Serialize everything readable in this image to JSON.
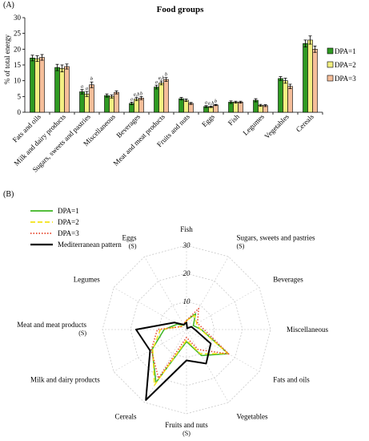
{
  "panel_a_label": "(A)",
  "panel_b_label": "(B)",
  "chart_data": [
    {
      "type": "bar",
      "title": "Food groups",
      "xlabel": "",
      "ylabel": "% of total energy",
      "ylim": [
        0,
        30
      ],
      "yticks": [
        0,
        5,
        10,
        15,
        20,
        25,
        30
      ],
      "grid": false,
      "legend_position": "right",
      "categories": [
        "Fats and oils",
        "Milk and dairy products",
        "Sugars, sweets and pastries",
        "Miscellaneous",
        "Beverages",
        "Meat and meat products",
        "Fruits and nuts",
        "Eggs",
        "Fish",
        "Legumes",
        "Vegetables",
        "Cereals"
      ],
      "series": [
        {
          "name": "DPA=1",
          "color": "#2f9a22",
          "values": [
            17.2,
            14.2,
            6.5,
            5.3,
            2.8,
            8.0,
            4.3,
            1.8,
            3.2,
            3.8,
            10.7,
            21.8
          ],
          "errors": [
            0.9,
            1.0,
            0.7,
            0.5,
            0.4,
            0.6,
            0.4,
            0.3,
            0.4,
            0.5,
            0.6,
            1.1
          ]
        },
        {
          "name": "DPA=2",
          "color": "#f2ef82",
          "values": [
            17.0,
            13.9,
            5.8,
            5.0,
            4.2,
            9.3,
            3.8,
            1.7,
            3.2,
            2.2,
            10.0,
            22.9
          ],
          "errors": [
            0.9,
            1.1,
            0.8,
            0.5,
            0.5,
            0.6,
            0.4,
            0.2,
            0.3,
            0.3,
            0.8,
            1.3
          ]
        },
        {
          "name": "DPA=3",
          "color": "#f5be9a",
          "values": [
            17.4,
            14.5,
            8.7,
            6.3,
            4.5,
            10.4,
            2.8,
            2.3,
            3.2,
            2.1,
            8.2,
            20.0
          ],
          "errors": [
            0.9,
            0.8,
            0.9,
            0.5,
            0.5,
            0.6,
            0.3,
            0.2,
            0.3,
            0.3,
            0.7,
            1.0
          ]
        }
      ],
      "annotations": [
        {
          "category": "Sugars, sweets and pastries",
          "labels": [
            "a",
            "a",
            "b"
          ]
        },
        {
          "category": "Beverages",
          "labels": [
            "a",
            "a,b",
            "b"
          ]
        },
        {
          "category": "Meat and meat products",
          "labels": [
            "a",
            "a,b",
            "b"
          ]
        },
        {
          "category": "Eggs",
          "labels": [
            "a",
            "a,b",
            "b"
          ]
        }
      ]
    },
    {
      "type": "radar",
      "rlim": [
        0,
        30
      ],
      "rticks": [
        10,
        20,
        30
      ],
      "grid": true,
      "legend_position": "top-left",
      "axes": [
        "Fish",
        "Sugars, sweets and pastries",
        "Beverages",
        "Miscellaneous",
        "Fats and oils",
        "Vegetables",
        "Fruits and nuts",
        "Cereals",
        "Milk and dairy products",
        "Meat and meat products",
        "Legumes",
        "Eggs"
      ],
      "axis_notes": [
        "",
        "(S)",
        "",
        "",
        "",
        "",
        "(S)",
        "",
        "",
        "(S)",
        "",
        "(S)"
      ],
      "series": [
        {
          "name": "DPA=1",
          "color": "#3cb521",
          "dash": "solid",
          "values": [
            3.2,
            6.5,
            2.8,
            5.3,
            17.2,
            10.7,
            4.3,
            21.8,
            14.2,
            8.0,
            3.8,
            1.8
          ]
        },
        {
          "name": "DPA=2",
          "color": "#f5e218",
          "dash": "dashed",
          "values": [
            3.2,
            5.8,
            4.2,
            5.0,
            17.0,
            10.0,
            3.8,
            22.9,
            13.9,
            9.3,
            2.2,
            1.7
          ]
        },
        {
          "name": "DPA=3",
          "color": "#e6452d",
          "dash": "dotted",
          "values": [
            3.2,
            8.7,
            4.5,
            6.3,
            17.4,
            8.2,
            2.8,
            20.0,
            14.5,
            10.4,
            2.1,
            2.3
          ]
        },
        {
          "name": "Mediterranean pattern",
          "color": "#000000",
          "dash": "solid",
          "values": [
            2.5,
            0.5,
            2.0,
            3.0,
            10.0,
            14.0,
            11.0,
            29.0,
            15.0,
            18.0,
            5.0,
            2.0
          ]
        }
      ]
    }
  ]
}
